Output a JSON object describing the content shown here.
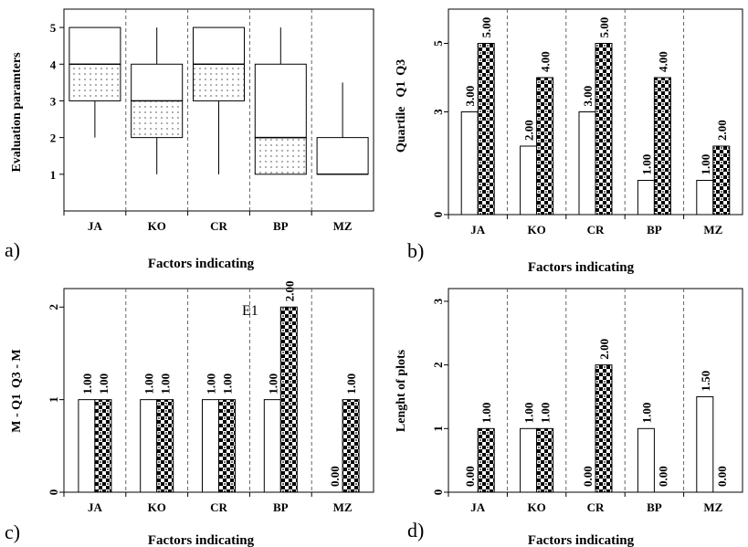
{
  "chart_data": [
    {
      "panel_label": "a)",
      "type": "box",
      "categories": [
        "JA",
        "KO",
        "CR",
        "BP",
        "MZ"
      ],
      "ylim": [
        0,
        5.5
      ],
      "yticks": [
        1,
        2,
        3,
        4,
        5
      ],
      "ylabel": "Evaluation paramters",
      "xlabel": "Factors indicating",
      "boxes": [
        {
          "min": 2,
          "q1": 3,
          "median": 4,
          "q3": 5,
          "max": 5
        },
        {
          "min": 1,
          "q1": 2,
          "median": 3,
          "q3": 4,
          "max": 5
        },
        {
          "min": 1,
          "q1": 3,
          "median": 4,
          "q3": 5,
          "max": 5
        },
        {
          "min": 1,
          "q1": 1,
          "median": 2,
          "q3": 4,
          "max": 5
        },
        {
          "min": 1,
          "q1": 1,
          "median": 1,
          "q3": 2,
          "max": 3.5
        }
      ]
    },
    {
      "panel_label": "b)",
      "type": "bar",
      "categories": [
        "JA",
        "KO",
        "CR",
        "BP",
        "MZ"
      ],
      "ylim": [
        0,
        6
      ],
      "yticks": [
        0,
        3,
        5
      ],
      "ylabel_main": "Quartile",
      "ylabel_terms": [
        "Q1",
        "Q3"
      ],
      "xlabel": "Factors indicating",
      "series": [
        {
          "values": [
            3,
            2,
            3,
            1,
            1
          ],
          "labels": [
            "3.00",
            "2.00",
            "3.00",
            "1.00",
            "1.00"
          ],
          "fill": "white"
        },
        {
          "values": [
            5,
            4,
            5,
            4,
            2
          ],
          "labels": [
            "5.00",
            "4.00",
            "5.00",
            "4.00",
            "2.00"
          ],
          "fill": "pattern"
        }
      ]
    },
    {
      "panel_label": "c)",
      "type": "bar",
      "categories": [
        "JA",
        "KO",
        "CR",
        "BP",
        "MZ"
      ],
      "ylim": [
        0,
        2.2
      ],
      "yticks": [
        0,
        1,
        2
      ],
      "ylabel_terms": [
        "M - Q1",
        "Q3 - M"
      ],
      "xlabel": "Factors indicating",
      "annotation": "E1",
      "series": [
        {
          "values": [
            1,
            1,
            1,
            1,
            0
          ],
          "labels": [
            "1.00",
            "1.00",
            "1.00",
            "1.00",
            "0.00"
          ],
          "fill": "white"
        },
        {
          "values": [
            1,
            1,
            1,
            2,
            1
          ],
          "labels": [
            "1.00",
            "1.00",
            "1.00",
            "2.00",
            "1.00"
          ],
          "fill": "pattern"
        }
      ]
    },
    {
      "panel_label": "d)",
      "type": "bar",
      "categories": [
        "JA",
        "KO",
        "CR",
        "BP",
        "MZ"
      ],
      "ylim": [
        0,
        3.2
      ],
      "yticks": [
        0,
        1,
        2,
        3
      ],
      "ylabel": "Lenght of plots",
      "xlabel": "Factors indicating",
      "series": [
        {
          "values": [
            0,
            1,
            0,
            1,
            1.5
          ],
          "labels": [
            "0.00",
            "1.00",
            "0.00",
            "1.00",
            "1.50"
          ],
          "fill": "white"
        },
        {
          "values": [
            1,
            1,
            2,
            0,
            0
          ],
          "labels": [
            "1.00",
            "1.00",
            "2.00",
            "0.00",
            "0.00"
          ],
          "fill": "pattern"
        }
      ]
    }
  ]
}
